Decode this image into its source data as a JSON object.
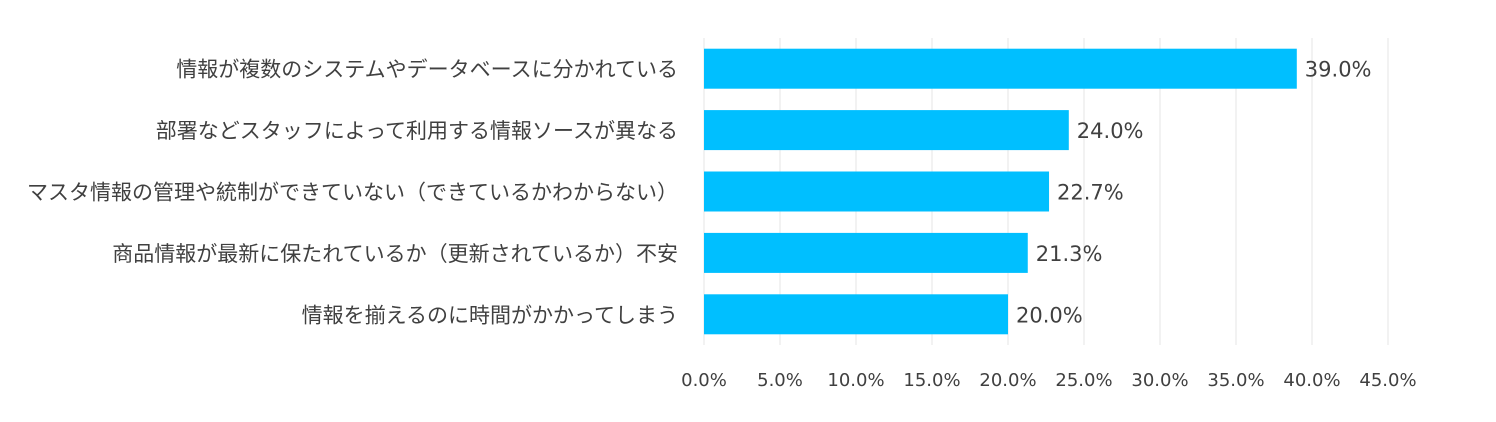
{
  "chart_data": {
    "type": "bar",
    "orientation": "horizontal",
    "categories": [
      "情報が複数のシステムやデータベースに分かれている",
      "部署などスタッフによって利用する情報ソースが異なる",
      "マスタ情報の管理や統制ができていない（できているかわからない）",
      "商品情報が最新に保たれているか（更新されているか）不安",
      "情報を揃えるのに時間がかかってしまう"
    ],
    "values": [
      39.0,
      24.0,
      22.7,
      21.3,
      20.0
    ],
    "data_labels": [
      "39.0%",
      "24.0%",
      "22.7%",
      "21.3%",
      "20.0%"
    ],
    "x_ticks": [
      "0.0%",
      "5.0%",
      "10.0%",
      "15.0%",
      "20.0%",
      "25.0%",
      "30.0%",
      "35.0%",
      "40.0%",
      "45.0%"
    ],
    "xlim": [
      0,
      45
    ],
    "grid": true,
    "title": "",
    "xlabel": "",
    "ylabel": "",
    "bar_color": "#00bfff"
  }
}
